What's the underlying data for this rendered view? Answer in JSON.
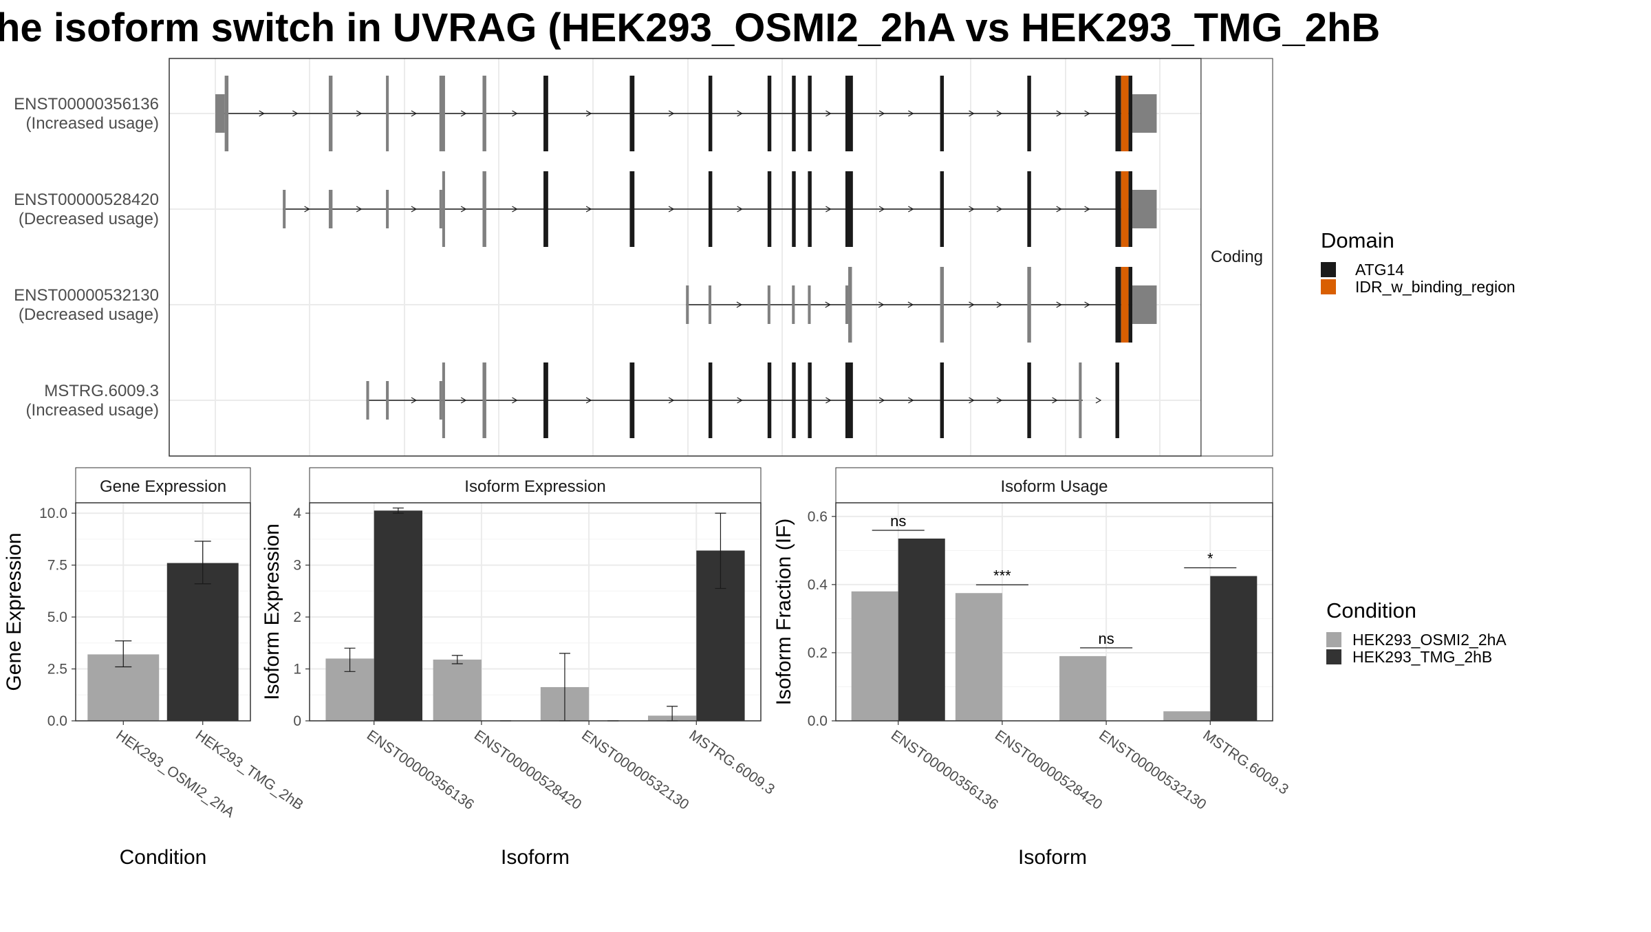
{
  "title": "he isoform switch in UVRAG (HEK293_OSMI2_2hA vs HEK293_TMG_2hB",
  "colors": {
    "domain_ATG14": "#1a1a1a",
    "domain_IDR": "#d95f02",
    "noncoding_exon": "#808080",
    "condition_A": "#a6a6a6",
    "condition_B": "#333333",
    "grid": "#ebebeb"
  },
  "structure_panel": {
    "strip_label": "Coding",
    "transcripts": [
      {
        "name": "ENST00000356136",
        "usage": "(Increased usage)",
        "span": [
          0,
          1000
        ],
        "exons": [
          {
            "s": 0,
            "e": 10,
            "h": "utr",
            "c": "nc"
          },
          {
            "s": 10,
            "e": 14,
            "h": "cds",
            "c": "nc"
          },
          {
            "s": 121,
            "e": 125,
            "h": "cds",
            "c": "nc"
          },
          {
            "s": 182,
            "e": 185,
            "h": "cds",
            "c": "nc"
          },
          {
            "s": 239,
            "e": 245,
            "h": "cds",
            "c": "nc"
          },
          {
            "s": 285,
            "e": 289,
            "h": "cds",
            "c": "nc"
          },
          {
            "s": 350,
            "e": 355,
            "h": "cds",
            "c": "d"
          },
          {
            "s": 442,
            "e": 447,
            "h": "cds",
            "c": "d"
          },
          {
            "s": 526,
            "e": 530,
            "h": "cds",
            "c": "d"
          },
          {
            "s": 589,
            "e": 593,
            "h": "cds",
            "c": "d"
          },
          {
            "s": 615,
            "e": 619,
            "h": "cds",
            "c": "d"
          },
          {
            "s": 632,
            "e": 636,
            "h": "cds",
            "c": "d"
          },
          {
            "s": 672,
            "e": 680,
            "h": "cds",
            "c": "d"
          },
          {
            "s": 773,
            "e": 777,
            "h": "cds",
            "c": "d"
          },
          {
            "s": 866,
            "e": 870,
            "h": "cds",
            "c": "d"
          },
          {
            "s": 960,
            "e": 966,
            "h": "cds",
            "c": "d"
          },
          {
            "s": 966,
            "e": 974,
            "h": "cds",
            "c": "i"
          },
          {
            "s": 974,
            "e": 978,
            "h": "cds",
            "c": "d"
          },
          {
            "s": 978,
            "e": 1004,
            "h": "utr",
            "c": "nc"
          }
        ]
      },
      {
        "name": "ENST00000528420",
        "usage": "(Decreased usage)",
        "span": [
          72,
          1000
        ],
        "exons": [
          {
            "s": 72,
            "e": 75,
            "h": "utr",
            "c": "nc"
          },
          {
            "s": 121,
            "e": 125,
            "h": "utr",
            "c": "nc"
          },
          {
            "s": 182,
            "e": 185,
            "h": "utr",
            "c": "nc"
          },
          {
            "s": 239,
            "e": 242,
            "h": "utr",
            "c": "nc"
          },
          {
            "s": 242,
            "e": 245,
            "h": "cds",
            "c": "nc"
          },
          {
            "s": 285,
            "e": 289,
            "h": "cds",
            "c": "nc"
          },
          {
            "s": 350,
            "e": 355,
            "h": "cds",
            "c": "d"
          },
          {
            "s": 442,
            "e": 447,
            "h": "cds",
            "c": "d"
          },
          {
            "s": 526,
            "e": 530,
            "h": "cds",
            "c": "d"
          },
          {
            "s": 589,
            "e": 593,
            "h": "cds",
            "c": "d"
          },
          {
            "s": 615,
            "e": 619,
            "h": "cds",
            "c": "d"
          },
          {
            "s": 632,
            "e": 636,
            "h": "cds",
            "c": "d"
          },
          {
            "s": 672,
            "e": 680,
            "h": "cds",
            "c": "d"
          },
          {
            "s": 773,
            "e": 777,
            "h": "cds",
            "c": "d"
          },
          {
            "s": 866,
            "e": 870,
            "h": "cds",
            "c": "d"
          },
          {
            "s": 960,
            "e": 966,
            "h": "cds",
            "c": "d"
          },
          {
            "s": 966,
            "e": 974,
            "h": "cds",
            "c": "i"
          },
          {
            "s": 974,
            "e": 978,
            "h": "cds",
            "c": "d"
          },
          {
            "s": 978,
            "e": 1004,
            "h": "utr",
            "c": "nc"
          }
        ]
      },
      {
        "name": "ENST00000532130",
        "usage": "(Decreased usage)",
        "span": [
          502,
          1000
        ],
        "exons": [
          {
            "s": 502,
            "e": 505,
            "h": "utr",
            "c": "nc"
          },
          {
            "s": 526,
            "e": 529,
            "h": "utr",
            "c": "nc"
          },
          {
            "s": 589,
            "e": 592,
            "h": "utr",
            "c": "nc"
          },
          {
            "s": 615,
            "e": 618,
            "h": "utr",
            "c": "nc"
          },
          {
            "s": 632,
            "e": 635,
            "h": "utr",
            "c": "nc"
          },
          {
            "s": 672,
            "e": 675,
            "h": "utr",
            "c": "nc"
          },
          {
            "s": 675,
            "e": 679,
            "h": "cds",
            "c": "nc"
          },
          {
            "s": 773,
            "e": 777,
            "h": "cds",
            "c": "nc"
          },
          {
            "s": 866,
            "e": 870,
            "h": "cds",
            "c": "nc"
          },
          {
            "s": 960,
            "e": 966,
            "h": "cds",
            "c": "d"
          },
          {
            "s": 966,
            "e": 974,
            "h": "cds",
            "c": "i"
          },
          {
            "s": 974,
            "e": 978,
            "h": "cds",
            "c": "d"
          },
          {
            "s": 978,
            "e": 1004,
            "h": "utr",
            "c": "nc"
          }
        ]
      },
      {
        "name": "MSTRG.6009.3",
        "usage": "(Increased usage)",
        "span": [
          161,
          925
        ],
        "exons": [
          {
            "s": 161,
            "e": 164,
            "h": "utr",
            "c": "nc"
          },
          {
            "s": 182,
            "e": 185,
            "h": "utr",
            "c": "nc"
          },
          {
            "s": 239,
            "e": 242,
            "h": "utr",
            "c": "nc"
          },
          {
            "s": 242,
            "e": 245,
            "h": "cds",
            "c": "nc"
          },
          {
            "s": 285,
            "e": 289,
            "h": "cds",
            "c": "nc"
          },
          {
            "s": 350,
            "e": 355,
            "h": "cds",
            "c": "d"
          },
          {
            "s": 442,
            "e": 447,
            "h": "cds",
            "c": "d"
          },
          {
            "s": 526,
            "e": 530,
            "h": "cds",
            "c": "d"
          },
          {
            "s": 589,
            "e": 593,
            "h": "cds",
            "c": "d"
          },
          {
            "s": 615,
            "e": 619,
            "h": "cds",
            "c": "d"
          },
          {
            "s": 632,
            "e": 636,
            "h": "cds",
            "c": "d"
          },
          {
            "s": 672,
            "e": 680,
            "h": "cds",
            "c": "d"
          },
          {
            "s": 773,
            "e": 777,
            "h": "cds",
            "c": "d"
          },
          {
            "s": 866,
            "e": 870,
            "h": "cds",
            "c": "d"
          },
          {
            "s": 960,
            "e": 964,
            "h": "cds",
            "c": "d"
          },
          {
            "s": 921,
            "e": 924,
            "h": "cds",
            "c": "nc"
          }
        ]
      }
    ]
  },
  "legends": {
    "domain": {
      "title": "Domain",
      "items": [
        "ATG14",
        "IDR_w_binding_region"
      ]
    },
    "condition": {
      "title": "Condition",
      "items": [
        "HEK293_OSMI2_2hA",
        "HEK293_TMG_2hB"
      ]
    }
  },
  "chart_data": [
    {
      "type": "bar",
      "title": "Gene Expression",
      "xlabel": "Condition",
      "ylabel": "Gene Expression",
      "ylim": [
        0,
        10.5
      ],
      "yticks": [
        "0.0",
        "2.5",
        "5.0",
        "7.5",
        "10.0"
      ],
      "categories": [
        "HEK293_OSMI2_2hA",
        "HEK293_TMG_2hB"
      ],
      "values": [
        3.2,
        7.6
      ],
      "error_low": [
        2.6,
        6.6
      ],
      "error_high": [
        3.85,
        8.65
      ]
    },
    {
      "type": "bar",
      "title": "Isoform Expression",
      "xlabel": "Isoform",
      "ylabel": "Isoform Expression",
      "ylim": [
        0,
        4.2
      ],
      "yticks": [
        "0",
        "1",
        "2",
        "3",
        "4"
      ],
      "categories": [
        "ENST00000356136",
        "ENST00000528420",
        "ENST00000532130",
        "MSTRG.6009.3"
      ],
      "series": [
        {
          "name": "HEK293_OSMI2_2hA",
          "values": [
            1.2,
            1.18,
            0.65,
            0.1
          ],
          "error_low": [
            0.95,
            1.1,
            0.0,
            0.0
          ],
          "error_high": [
            1.4,
            1.26,
            1.3,
            0.28
          ]
        },
        {
          "name": "HEK293_TMG_2hB",
          "values": [
            4.05,
            0.0,
            0.0,
            3.28
          ],
          "error_low": [
            4.0,
            0.0,
            0.0,
            2.55
          ],
          "error_high": [
            4.1,
            0.0,
            0.0,
            4.0
          ]
        }
      ]
    },
    {
      "type": "bar",
      "title": "Isoform Usage",
      "xlabel": "Isoform",
      "ylabel": "Isoform Fraction (IF)",
      "ylim": [
        0,
        0.64
      ],
      "yticks": [
        "0.0",
        "0.2",
        "0.4",
        "0.6"
      ],
      "categories": [
        "ENST00000356136",
        "ENST00000528420",
        "ENST00000532130",
        "MSTRG.6009.3"
      ],
      "series": [
        {
          "name": "HEK293_OSMI2_2hA",
          "values": [
            0.38,
            0.375,
            0.19,
            0.028
          ]
        },
        {
          "name": "HEK293_TMG_2hB",
          "values": [
            0.535,
            0.0,
            0.0,
            0.425
          ]
        }
      ],
      "significance": [
        "ns",
        "***",
        "ns",
        "*"
      ]
    }
  ]
}
